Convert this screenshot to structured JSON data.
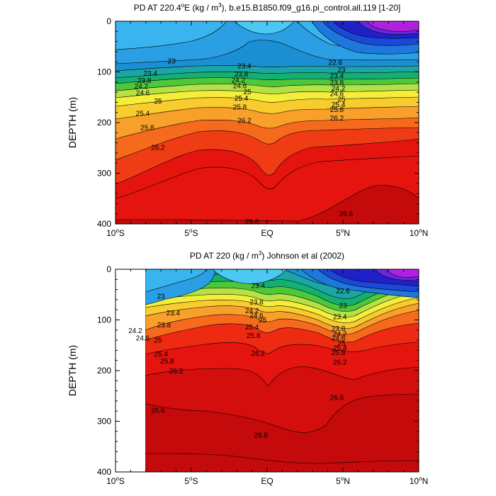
{
  "chart_data": [
    {
      "type": "contour",
      "title_parts": [
        "PD AT 220.4",
        "o",
        "E (kg / m",
        "3",
        "), b.e15.B1850.f09_g16.pi_control.all.119 [1-20]"
      ],
      "ylabel": "DEPTH (m)",
      "xlim": [
        -10,
        10
      ],
      "ylim": [
        0,
        400
      ],
      "data_xmin": -10,
      "x_ticks": [
        {
          "value": -10,
          "label": "10",
          "sup": "o",
          "suffix": "S"
        },
        {
          "value": -5,
          "label": "5",
          "sup": "o",
          "suffix": "S"
        },
        {
          "value": 0,
          "label": "EQ",
          "sup": "",
          "suffix": ""
        },
        {
          "value": 5,
          "label": "5",
          "sup": "o",
          "suffix": "N"
        },
        {
          "value": 10,
          "label": "10",
          "sup": "o",
          "suffix": "N"
        }
      ],
      "y_ticks": [
        "0",
        "100",
        "200",
        "300",
        "400"
      ],
      "y_tick_values": [
        0,
        100,
        200,
        300,
        400
      ],
      "contour_labels": [
        {
          "text": "23",
          "x": -6.3,
          "y": 78
        },
        {
          "text": "23.4",
          "x": -7.7,
          "y": 103
        },
        {
          "text": "23.8",
          "x": -8.1,
          "y": 117
        },
        {
          "text": "24.2",
          "x": -8.3,
          "y": 128
        },
        {
          "text": "24.6",
          "x": -8.2,
          "y": 141
        },
        {
          "text": "25",
          "x": -7.2,
          "y": 157
        },
        {
          "text": "25.4",
          "x": -8.2,
          "y": 182
        },
        {
          "text": "25.8",
          "x": -7.9,
          "y": 210
        },
        {
          "text": "26.2",
          "x": -7.2,
          "y": 249
        },
        {
          "text": "23.4",
          "x": -1.5,
          "y": 88
        },
        {
          "text": "23.8",
          "x": -1.7,
          "y": 104
        },
        {
          "text": "24.2",
          "x": -1.9,
          "y": 116
        },
        {
          "text": "24.6",
          "x": -1.8,
          "y": 127
        },
        {
          "text": "25",
          "x": -1.3,
          "y": 139
        },
        {
          "text": "25.4",
          "x": -1.7,
          "y": 152
        },
        {
          "text": "25.8",
          "x": -1.8,
          "y": 169
        },
        {
          "text": "26.2",
          "x": -1.5,
          "y": 196
        },
        {
          "text": "22.6",
          "x": 4.5,
          "y": 81
        },
        {
          "text": "23",
          "x": 4.9,
          "y": 96
        },
        {
          "text": "23.4",
          "x": 4.6,
          "y": 108
        },
        {
          "text": "23.8",
          "x": 4.6,
          "y": 121
        },
        {
          "text": "24.2",
          "x": 4.7,
          "y": 132
        },
        {
          "text": "24.6",
          "x": 4.6,
          "y": 143
        },
        {
          "text": "25",
          "x": 4.9,
          "y": 154
        },
        {
          "text": "25.4",
          "x": 4.7,
          "y": 164
        },
        {
          "text": "25.8",
          "x": 4.6,
          "y": 174
        },
        {
          "text": "26.2",
          "x": 4.6,
          "y": 191
        },
        {
          "text": "26.6",
          "x": -1.0,
          "y": 395
        },
        {
          "text": "26.6",
          "x": 5.2,
          "y": 380
        }
      ]
    },
    {
      "type": "contour",
      "title_parts": [
        "PD AT 220 (kg / m",
        "3",
        ") Johnson et al (2002)"
      ],
      "ylabel": "DEPTH (m)",
      "xlim": [
        -10,
        10
      ],
      "ylim": [
        0,
        400
      ],
      "data_xmin": -8,
      "x_ticks": [
        {
          "value": -10,
          "label": "10",
          "sup": "o",
          "suffix": "S"
        },
        {
          "value": -5,
          "label": "5",
          "sup": "o",
          "suffix": "S"
        },
        {
          "value": 0,
          "label": "EQ",
          "sup": "",
          "suffix": ""
        },
        {
          "value": 5,
          "label": "5",
          "sup": "o",
          "suffix": "N"
        },
        {
          "value": 10,
          "label": "10",
          "sup": "o",
          "suffix": "N"
        }
      ],
      "y_ticks": [
        "0",
        "100",
        "200",
        "300",
        "400"
      ],
      "y_tick_values": [
        0,
        100,
        200,
        300,
        400
      ],
      "contour_labels": [
        {
          "text": "23",
          "x": -7.0,
          "y": 53
        },
        {
          "text": "23.4",
          "x": -6.2,
          "y": 86
        },
        {
          "text": "23.8",
          "x": -6.8,
          "y": 110
        },
        {
          "text": "24.2",
          "x": -8.7,
          "y": 121
        },
        {
          "text": "24.6",
          "x": -8.2,
          "y": 136
        },
        {
          "text": "25",
          "x": -7.2,
          "y": 140
        },
        {
          "text": "25.4",
          "x": -7.0,
          "y": 167
        },
        {
          "text": "25.8",
          "x": -6.6,
          "y": 181
        },
        {
          "text": "26.2",
          "x": -6.0,
          "y": 201
        },
        {
          "text": "23.4",
          "x": -0.6,
          "y": 32
        },
        {
          "text": "23.8",
          "x": -0.7,
          "y": 64
        },
        {
          "text": "24.2",
          "x": -1.0,
          "y": 82
        },
        {
          "text": "24.6",
          "x": -0.7,
          "y": 91
        },
        {
          "text": "25",
          "x": -0.3,
          "y": 100
        },
        {
          "text": "25.4",
          "x": -1.0,
          "y": 114
        },
        {
          "text": "25.8",
          "x": -0.9,
          "y": 131
        },
        {
          "text": "26.2",
          "x": -0.6,
          "y": 166
        },
        {
          "text": "22.6",
          "x": 5.0,
          "y": 43
        },
        {
          "text": "23",
          "x": 5.0,
          "y": 71
        },
        {
          "text": "23.4",
          "x": 4.8,
          "y": 94
        },
        {
          "text": "23.8",
          "x": 4.7,
          "y": 117
        },
        {
          "text": "24.2",
          "x": 4.8,
          "y": 127
        },
        {
          "text": "24.6",
          "x": 4.7,
          "y": 136
        },
        {
          "text": "25",
          "x": 4.9,
          "y": 146
        },
        {
          "text": "25.4",
          "x": 4.8,
          "y": 155
        },
        {
          "text": "25.8",
          "x": 4.7,
          "y": 164
        },
        {
          "text": "26.2",
          "x": 4.8,
          "y": 183
        },
        {
          "text": "26.6",
          "x": -7.2,
          "y": 278
        },
        {
          "text": "26.6",
          "x": -0.4,
          "y": 327
        },
        {
          "text": "26.6",
          "x": 4.6,
          "y": 253
        }
      ]
    }
  ]
}
